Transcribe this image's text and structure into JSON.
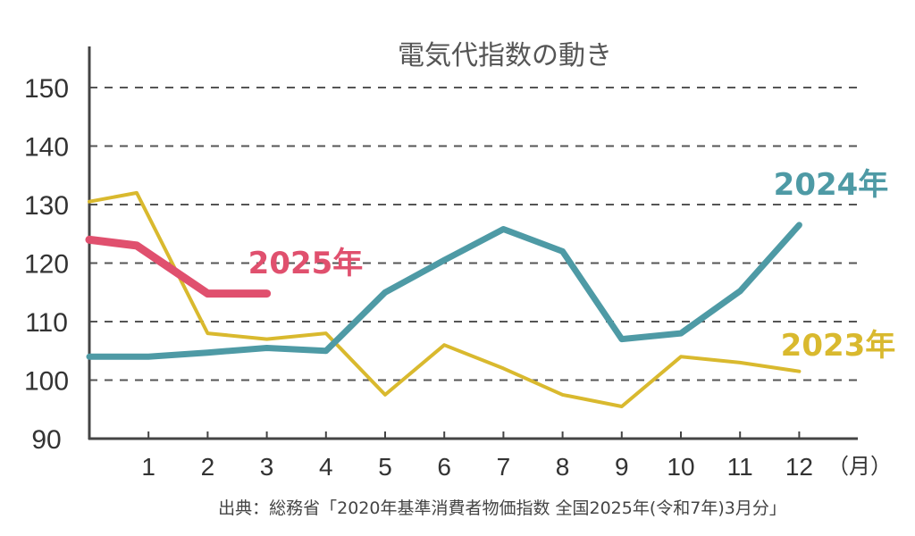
{
  "chart_data": {
    "type": "line",
    "title": "電気代指数の動き",
    "x_unit": "（月）",
    "x_categories": [
      "1",
      "2",
      "3",
      "4",
      "5",
      "6",
      "7",
      "8",
      "9",
      "10",
      "11",
      "12"
    ],
    "y_ticks": [
      "90",
      "100",
      "110",
      "120",
      "130",
      "140",
      "150"
    ],
    "ylim": [
      90,
      155
    ],
    "grid": true,
    "series": [
      {
        "name": "2023年",
        "color": "#D9B92E",
        "points": [
          [
            0,
            130.5
          ],
          [
            0.8,
            132
          ],
          [
            2,
            108
          ],
          [
            3,
            107
          ],
          [
            4,
            108
          ],
          [
            5,
            97.5
          ],
          [
            6,
            106
          ],
          [
            7,
            102
          ],
          [
            8,
            97.5
          ],
          [
            9,
            95.5
          ],
          [
            10,
            104
          ],
          [
            11,
            103
          ],
          [
            12,
            101.5
          ]
        ]
      },
      {
        "name": "2024年",
        "color": "#4E9AA5",
        "points": [
          [
            0,
            104
          ],
          [
            1,
            104
          ],
          [
            2,
            104.7
          ],
          [
            3,
            105.5
          ],
          [
            4,
            105
          ],
          [
            5,
            115
          ],
          [
            6,
            120.5
          ],
          [
            7,
            125.8
          ],
          [
            8,
            122
          ],
          [
            9,
            107
          ],
          [
            10,
            108
          ],
          [
            11,
            115.2
          ],
          [
            12,
            126.5
          ]
        ]
      },
      {
        "name": "2025年",
        "color": "#E0506E",
        "points": [
          [
            0,
            124
          ],
          [
            0.8,
            123
          ],
          [
            2,
            114.8
          ],
          [
            3,
            114.8
          ]
        ]
      }
    ]
  },
  "source_note": "出典：総務省「2020年基準消費者物価指数 全国2025年(令和7年)3月分」"
}
